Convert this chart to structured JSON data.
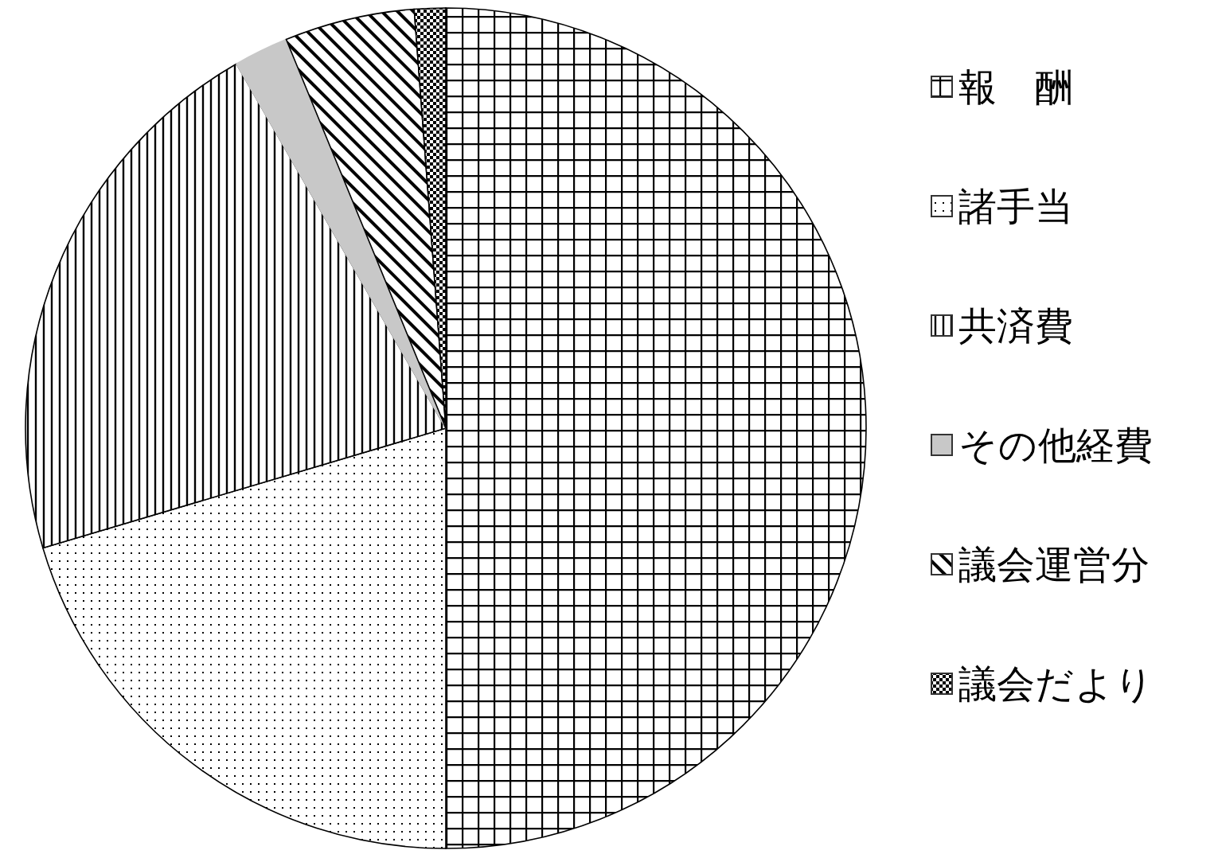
{
  "chart_data": {
    "type": "pie",
    "categories": [
      "報　酬",
      "諸手当",
      "共済費",
      "その他経費",
      "議会運営分",
      "議会だより"
    ],
    "values": [
      50.0,
      20.4,
      21.3,
      2.1,
      5.0,
      1.2
    ],
    "colors": [
      "#000000",
      "#000000",
      "#000000",
      "#c8c8c8",
      "#000000",
      "#000000"
    ],
    "legend": "right"
  }
}
